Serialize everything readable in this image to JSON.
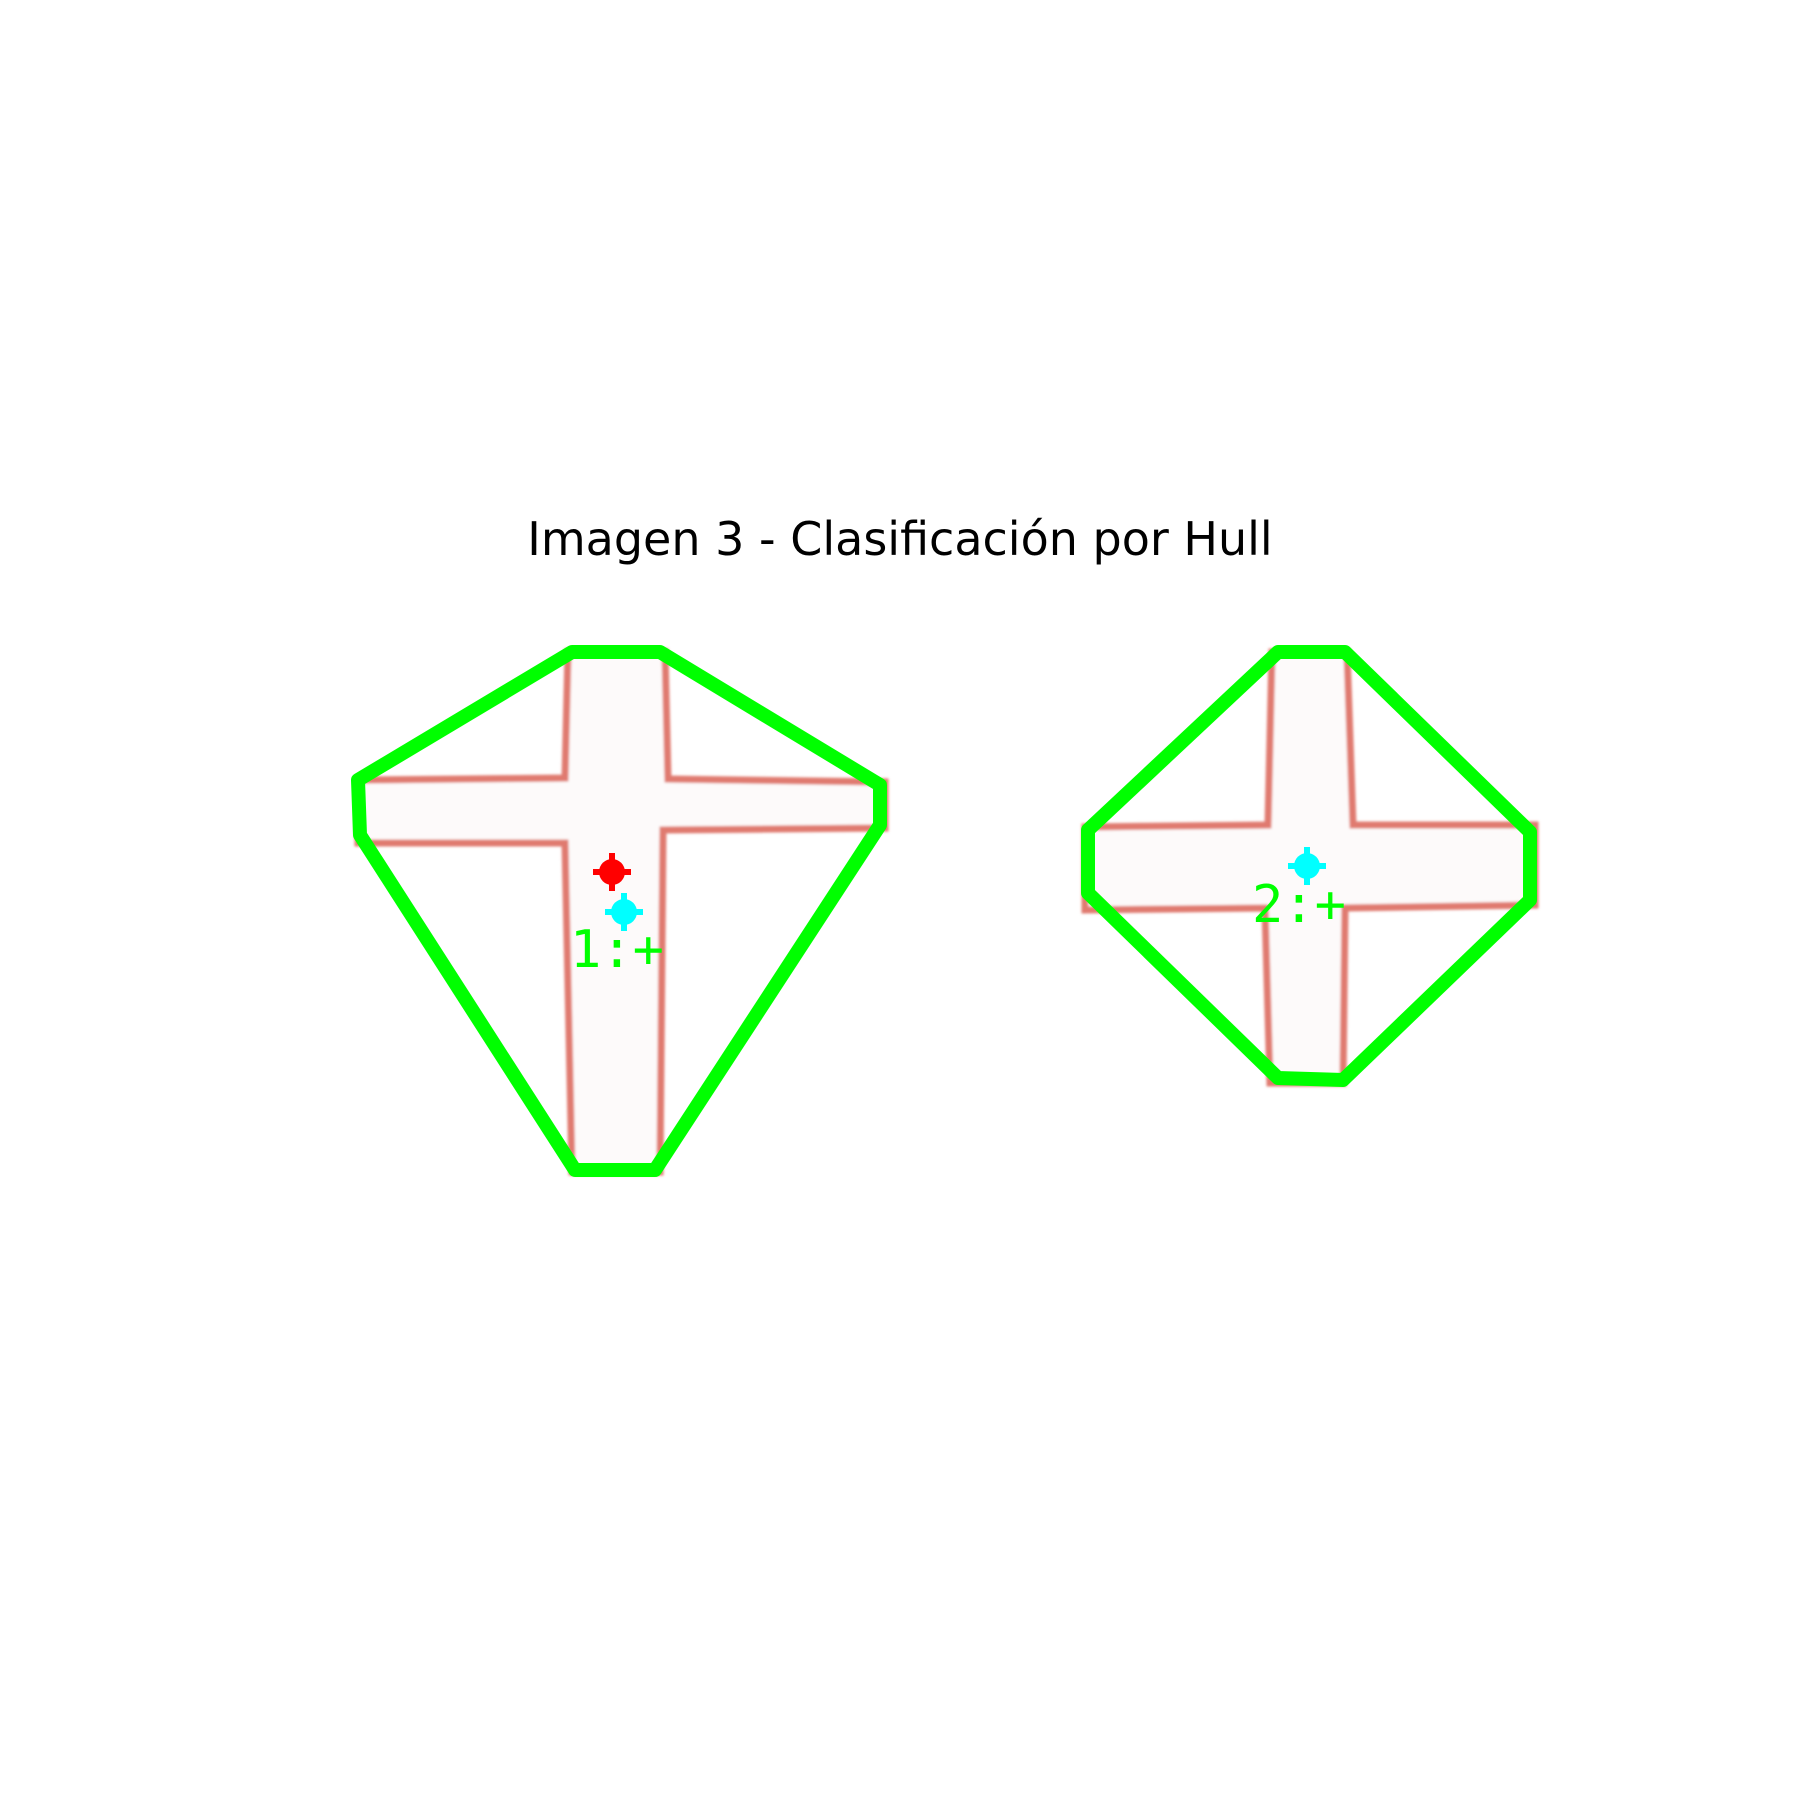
{
  "title": "Imagen 3 - Clasificación por Hull",
  "colors": {
    "background": "#ffffff",
    "hull": "#00ff00",
    "cross_fill": "#fdfafa",
    "cross_edge": "#e07a70",
    "centroid_red": "#ff0000",
    "centroid_cyan": "#00ffff",
    "label": "#00ff00"
  },
  "objects": [
    {
      "id": 1,
      "label": "1:+",
      "class": "+"
    },
    {
      "id": 2,
      "label": "2:+",
      "class": "+"
    }
  ]
}
